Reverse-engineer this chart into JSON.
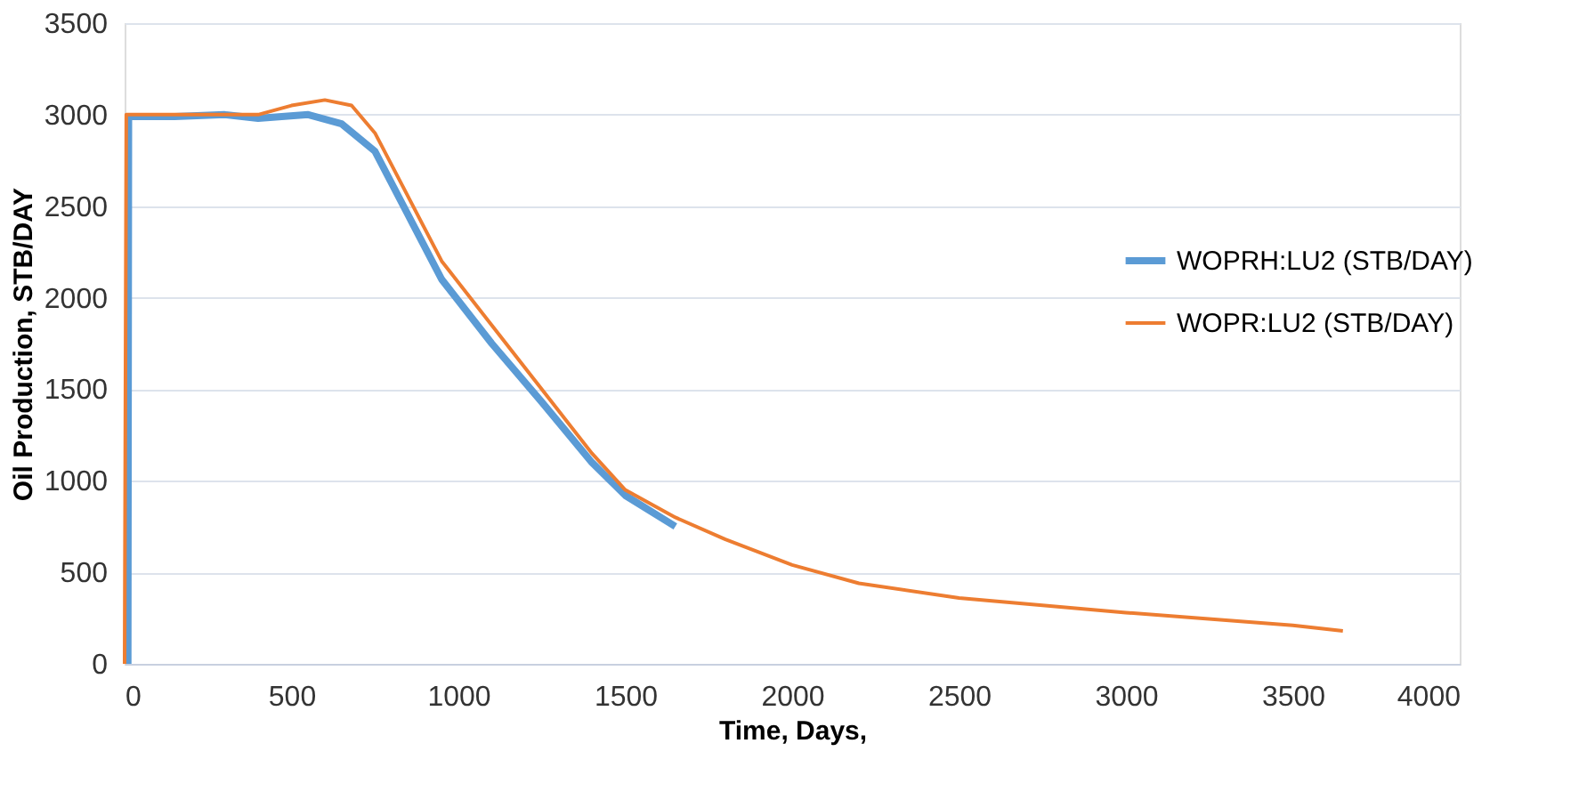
{
  "chart_data": {
    "type": "line",
    "xlabel": "Time, Days,",
    "ylabel": "Oil Production, STB/DAY",
    "xlim": [
      0,
      4000
    ],
    "xticks": [
      0,
      500,
      1000,
      1500,
      2000,
      2500,
      3000,
      3500,
      4000
    ],
    "ylim": [
      0,
      3500
    ],
    "yticks": [
      0,
      500,
      1000,
      1500,
      2000,
      2500,
      3000,
      3500
    ],
    "grid": "y",
    "legend": "right",
    "marker": "none",
    "line_style": "solid",
    "series": [
      {
        "name": "WOPRH:LU2  (STB/DAY)",
        "color": "#5b9bd5",
        "x": [
          10,
          12,
          150,
          300,
          400,
          550,
          650,
          750,
          850,
          950,
          1100,
          1250,
          1400,
          1500,
          1650
        ],
        "values": [
          0,
          2990,
          2990,
          3000,
          2980,
          3000,
          2950,
          2800,
          2450,
          2100,
          1750,
          1430,
          1100,
          920,
          750
        ]
      },
      {
        "name": "WOPR:LU2  (STB/DAY)",
        "color": "#ed7d31",
        "x": [
          0,
          5,
          200,
          400,
          500,
          600,
          680,
          750,
          850,
          950,
          1100,
          1250,
          1400,
          1500,
          1650,
          1800,
          2000,
          2200,
          2500,
          3000,
          3500,
          3650
        ],
        "values": [
          0,
          3000,
          3000,
          3000,
          3050,
          3080,
          3050,
          2900,
          2550,
          2200,
          1850,
          1500,
          1150,
          950,
          800,
          680,
          540,
          440,
          360,
          280,
          210,
          180
        ]
      }
    ]
  }
}
